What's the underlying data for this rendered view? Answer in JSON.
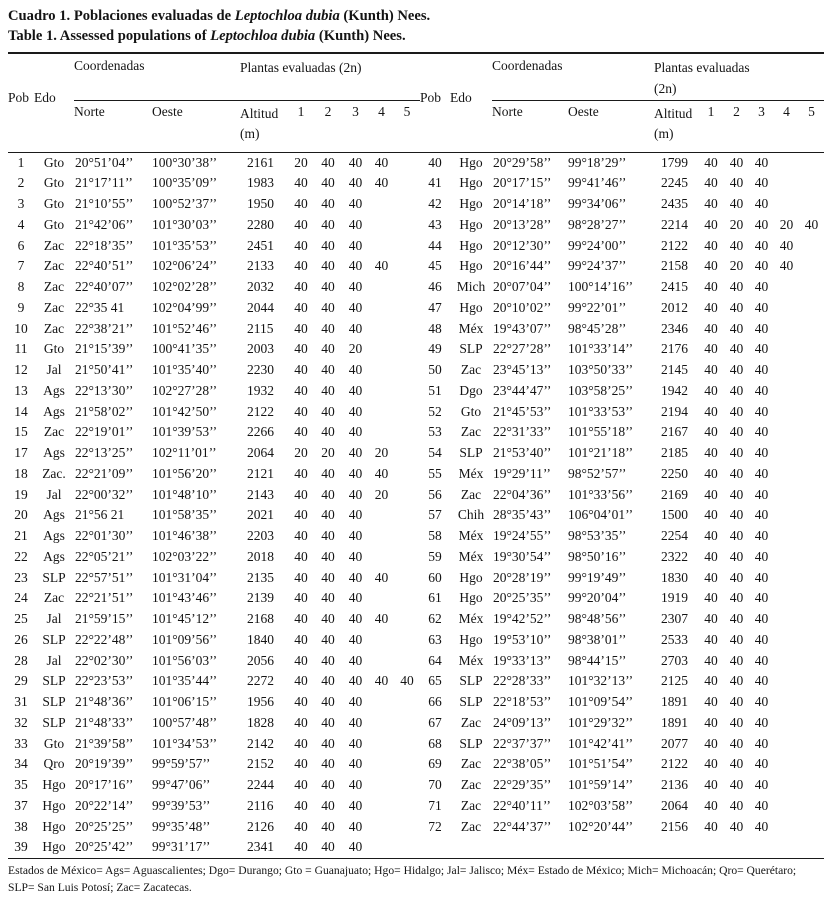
{
  "title": {
    "line1_prefix": "Cuadro 1. Poblaciones evaluadas de ",
    "line2_prefix": "Table 1. Assessed populations of ",
    "species": "Leptochloa dubia",
    "suffix": " (Kunth) Nees."
  },
  "header": {
    "pob": "Pob",
    "edo": "Edo",
    "coordenadas": "Coordenadas",
    "plantas": "Plantas evaluadas (2n)",
    "norte": "Norte",
    "oeste": "Oeste",
    "altitud": "Altitud (m)",
    "col_numbers": [
      "1",
      "2",
      "3",
      "4",
      "5"
    ]
  },
  "columns_order": [
    "pob",
    "edo",
    "norte",
    "oeste",
    "altitud",
    "p1",
    "p2",
    "p3",
    "p4",
    "p5"
  ],
  "rows_left": [
    [
      "1",
      "Gto",
      "20°51’04’’",
      "100°30’38’’",
      "2161",
      "20",
      "40",
      "40",
      "40",
      ""
    ],
    [
      "2",
      "Gto",
      "21°17’11’’",
      "100°35’09’’",
      "1983",
      "40",
      "40",
      "40",
      "40",
      ""
    ],
    [
      "3",
      "Gto",
      "21°10’55’’",
      "100°52’37’’",
      "1950",
      "40",
      "40",
      "40",
      "",
      ""
    ],
    [
      "4",
      "Gto",
      "21°42’06’’",
      "101°30’03’’",
      "2280",
      "40",
      "40",
      "40",
      "",
      ""
    ],
    [
      "6",
      "Zac",
      "22°18’35’’",
      "101°35’53’’",
      "2451",
      "40",
      "40",
      "40",
      "",
      ""
    ],
    [
      "7",
      "Zac",
      "22°40’51’’",
      "102°06’24’’",
      "2133",
      "40",
      "40",
      "40",
      "40",
      ""
    ],
    [
      "8",
      "Zac",
      "22°40’07’’",
      "102°02’28’’",
      "2032",
      "40",
      "40",
      "40",
      "",
      ""
    ],
    [
      "9",
      "Zac",
      "22°35 41",
      "102°04’99’’",
      "2044",
      "40",
      "40",
      "40",
      "",
      ""
    ],
    [
      "10",
      "Zac",
      "22°38’21’’",
      "101°52’46’’",
      "2115",
      "40",
      "40",
      "40",
      "",
      ""
    ],
    [
      "11",
      "Gto",
      "21°15’39’’",
      "100°41’35’’",
      "2003",
      "40",
      "40",
      "20",
      "",
      ""
    ],
    [
      "12",
      "Jal",
      "21°50’41’’",
      "101°35’40’’",
      "2230",
      "40",
      "40",
      "40",
      "",
      ""
    ],
    [
      "13",
      "Ags",
      "22°13’30’’",
      "102°27’28’’",
      "1932",
      "40",
      "40",
      "40",
      "",
      ""
    ],
    [
      "14",
      "Ags",
      "21°58’02’’",
      "101°42’50’’",
      "2122",
      "40",
      "40",
      "40",
      "",
      ""
    ],
    [
      "15",
      "Zac",
      "22°19’01’’",
      "101°39’53’’",
      "2266",
      "40",
      "40",
      "40",
      "",
      ""
    ],
    [
      "17",
      "Ags",
      "22°13’25’’",
      "102°11’01’’",
      "2064",
      "20",
      "20",
      "40",
      "20",
      ""
    ],
    [
      "18",
      "Zac.",
      "22°21’09’’",
      "101°56’20’’",
      "2121",
      "40",
      "40",
      "40",
      "40",
      ""
    ],
    [
      "19",
      "Jal",
      "22°00’32’’",
      "101°48’10’’",
      "2143",
      "40",
      "40",
      "40",
      "20",
      ""
    ],
    [
      "20",
      "Ags",
      "21°56 21",
      "101°58’35’’",
      "2021",
      "40",
      "40",
      "40",
      "",
      ""
    ],
    [
      "21",
      "Ags",
      "22°01’30’’",
      "101°46’38’’",
      "2203",
      "40",
      "40",
      "40",
      "",
      ""
    ],
    [
      "22",
      "Ags",
      "22°05’21’’",
      "102°03’22’’",
      "2018",
      "40",
      "40",
      "40",
      "",
      ""
    ],
    [
      "23",
      "SLP",
      "22°57’51’’",
      "101°31’04’’",
      "2135",
      "40",
      "40",
      "40",
      "40",
      ""
    ],
    [
      "24",
      "Zac",
      "22°21’51’’",
      "101°43’46’’",
      "2139",
      "40",
      "40",
      "40",
      "",
      ""
    ],
    [
      "25",
      "Jal",
      "21°59’15’’",
      "101°45’12’’",
      "2168",
      "40",
      "40",
      "40",
      "40",
      ""
    ],
    [
      "26",
      "SLP",
      "22°22’48’’",
      "101°09’56’’",
      "1840",
      "40",
      "40",
      "40",
      "",
      ""
    ],
    [
      "28",
      "Jal",
      "22°02’30’’",
      "101°56’03’’",
      "2056",
      "40",
      "40",
      "40",
      "",
      ""
    ],
    [
      "29",
      "SLP",
      "22°23’53’’",
      "101°35’44’’",
      "2272",
      "40",
      "40",
      "40",
      "40",
      "40"
    ],
    [
      "31",
      "SLP",
      "21°48’36’’",
      "101°06’15’’",
      "1956",
      "40",
      "40",
      "40",
      "",
      ""
    ],
    [
      "32",
      "SLP",
      "21°48’33’’",
      "100°57’48’’",
      "1828",
      "40",
      "40",
      "40",
      "",
      ""
    ],
    [
      "33",
      "Gto",
      "21°39’58’’",
      "101°34’53’’",
      "2142",
      "40",
      "40",
      "40",
      "",
      ""
    ],
    [
      "34",
      "Qro",
      "20°19’39’’",
      "99°59’57’’",
      "2152",
      "40",
      "40",
      "40",
      "",
      ""
    ],
    [
      "35",
      "Hgo",
      "20°17’16’’",
      "99°47’06’’",
      "2244",
      "40",
      "40",
      "40",
      "",
      ""
    ],
    [
      "37",
      "Hgo",
      "20°22’14’’",
      "99°39’53’’",
      "2116",
      "40",
      "40",
      "40",
      "",
      ""
    ],
    [
      "38",
      "Hgo",
      "20°25’25’’",
      "99°35’48’’",
      "2126",
      "40",
      "40",
      "40",
      "",
      ""
    ],
    [
      "39",
      "Hgo",
      "20°25’42’’",
      "99°31’17’’",
      "2341",
      "40",
      "40",
      "40",
      "",
      ""
    ]
  ],
  "rows_right": [
    [
      "40",
      "Hgo",
      "20°29’58’’",
      "99°18’29’’",
      "1799",
      "40",
      "40",
      "40",
      "",
      ""
    ],
    [
      "41",
      "Hgo",
      "20°17’15’’",
      "99°41’46’’",
      "2245",
      "40",
      "40",
      "40",
      "",
      ""
    ],
    [
      "42",
      "Hgo",
      "20°14’18’’",
      "99°34’06’’",
      "2435",
      "40",
      "40",
      "40",
      "",
      ""
    ],
    [
      "43",
      "Hgo",
      "20°13’28’’",
      "98°28’27’’",
      "2214",
      "40",
      "20",
      "40",
      "20",
      "40"
    ],
    [
      "44",
      "Hgo",
      "20°12’30’’",
      "99°24’00’’",
      "2122",
      "40",
      "40",
      "40",
      "40",
      ""
    ],
    [
      "45",
      "Hgo",
      "20°16’44’’",
      "99°24’37’’",
      "2158",
      "40",
      "20",
      "40",
      "40",
      ""
    ],
    [
      "46",
      "Mich",
      "20°07’04’’",
      "100°14’16’’",
      "2415",
      "40",
      "40",
      "40",
      "",
      ""
    ],
    [
      "47",
      "Hgo",
      "20°10’02’’",
      "99°22’01’’",
      "2012",
      "40",
      "40",
      "40",
      "",
      ""
    ],
    [
      "48",
      "Méx",
      "19°43’07’’",
      "98°45’28’’",
      "2346",
      "40",
      "40",
      "40",
      "",
      ""
    ],
    [
      "49",
      "SLP",
      "22°27’28’’",
      "101°33’14’’",
      "2176",
      "40",
      "40",
      "40",
      "",
      ""
    ],
    [
      "50",
      "Zac",
      "23°45’13’’",
      "103°50’33’’",
      "2145",
      "40",
      "40",
      "40",
      "",
      ""
    ],
    [
      "51",
      "Dgo",
      "23°44’47’’",
      "103°58’25’’",
      "1942",
      "40",
      "40",
      "40",
      "",
      ""
    ],
    [
      "52",
      "Gto",
      "21°45’53’’",
      "101°33’53’’",
      "2194",
      "40",
      "40",
      "40",
      "",
      ""
    ],
    [
      "53",
      "Zac",
      "22°31’33’’",
      "101°55’18’’",
      "2167",
      "40",
      "40",
      "40",
      "",
      ""
    ],
    [
      "54",
      "SLP",
      "21°53’40’’",
      "101°21’18’’",
      "2185",
      "40",
      "40",
      "40",
      "",
      ""
    ],
    [
      "55",
      "Méx",
      "19°29’11’’",
      "98°52’57’’",
      "2250",
      "40",
      "40",
      "40",
      "",
      ""
    ],
    [
      "56",
      "Zac",
      "22°04’36’’",
      "101°33’56’’",
      "2169",
      "40",
      "40",
      "40",
      "",
      ""
    ],
    [
      "57",
      "Chih",
      "28°35’43’’",
      "106°04’01’’",
      "1500",
      "40",
      "40",
      "40",
      "",
      ""
    ],
    [
      "58",
      "Méx",
      "19°24’55’’",
      "98°53’35’’",
      "2254",
      "40",
      "40",
      "40",
      "",
      ""
    ],
    [
      "59",
      "Méx",
      "19°30’54’’",
      "98°50’16’’",
      "2322",
      "40",
      "40",
      "40",
      "",
      ""
    ],
    [
      "60",
      "Hgo",
      "20°28’19’’",
      "99°19’49’’",
      "1830",
      "40",
      "40",
      "40",
      "",
      ""
    ],
    [
      "61",
      "Hgo",
      "20°25’35’’",
      "99°20’04’’",
      "1919",
      "40",
      "40",
      "40",
      "",
      ""
    ],
    [
      "62",
      "Méx",
      "19°42’52’’",
      "98°48’56’’",
      "2307",
      "40",
      "40",
      "40",
      "",
      ""
    ],
    [
      "63",
      "Hgo",
      "19°53’10’’",
      "98°38’01’’",
      "2533",
      "40",
      "40",
      "40",
      "",
      ""
    ],
    [
      "64",
      "Méx",
      "19°33’13’’",
      "98°44’15’’",
      "2703",
      "40",
      "40",
      "40",
      "",
      ""
    ],
    [
      "65",
      "SLP",
      "22°28’33’’",
      "101°32’13’’",
      "2125",
      "40",
      "40",
      "40",
      "",
      ""
    ],
    [
      "66",
      "SLP",
      "22°18’53’’",
      "101°09’54’’",
      "1891",
      "40",
      "40",
      "40",
      "",
      ""
    ],
    [
      "67",
      "Zac",
      "24°09’13’’",
      "101°29’32’’",
      "1891",
      "40",
      "40",
      "40",
      "",
      ""
    ],
    [
      "68",
      "SLP",
      "22°37’37’’",
      "101°42’41’’",
      "2077",
      "40",
      "40",
      "40",
      "",
      ""
    ],
    [
      "69",
      "Zac",
      "22°38’05’’",
      "101°51’54’’",
      "2122",
      "40",
      "40",
      "40",
      "",
      ""
    ],
    [
      "70",
      "Zac",
      "22°29’35’’",
      "101°59’14’’",
      "2136",
      "40",
      "40",
      "40",
      "",
      ""
    ],
    [
      "71",
      "Zac",
      "22°40’11’’",
      "102°03’58’’",
      "2064",
      "40",
      "40",
      "40",
      "",
      ""
    ],
    [
      "72",
      "Zac",
      "22°44’37’’",
      "102°20’44’’",
      "2156",
      "40",
      "40",
      "40",
      "",
      ""
    ]
  ],
  "footnote": "Estados de México= Ags= Aguascalientes; Dgo= Durango; Gto = Guanajuato; Hgo= Hidalgo; Jal= Jalisco; Méx= Estado de México; Mich= Michoacán; Qro= Querétaro; SLP= San Luis Potosí; Zac= Zacatecas."
}
